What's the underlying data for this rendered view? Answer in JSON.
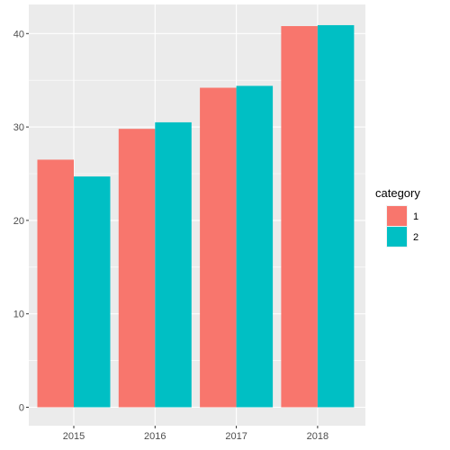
{
  "chart_data": {
    "type": "bar",
    "categories": [
      "2015",
      "2016",
      "2017",
      "2018"
    ],
    "series": [
      {
        "name": "1",
        "values": [
          26.5,
          29.8,
          34.2,
          40.8
        ],
        "color": "#F8766D"
      },
      {
        "name": "2",
        "values": [
          24.7,
          30.5,
          34.4,
          40.9
        ],
        "color": "#00BFC4"
      }
    ],
    "title": "",
    "xlabel": "",
    "ylabel": "",
    "ylim": [
      0,
      42.5
    ],
    "y_ticks": [
      "0",
      "10",
      "20",
      "30",
      "40"
    ],
    "grid": true,
    "legend": {
      "title": "category",
      "placement": "right"
    },
    "panel_background": "#EBEBEB",
    "grid_color": "#FFFFFF"
  }
}
